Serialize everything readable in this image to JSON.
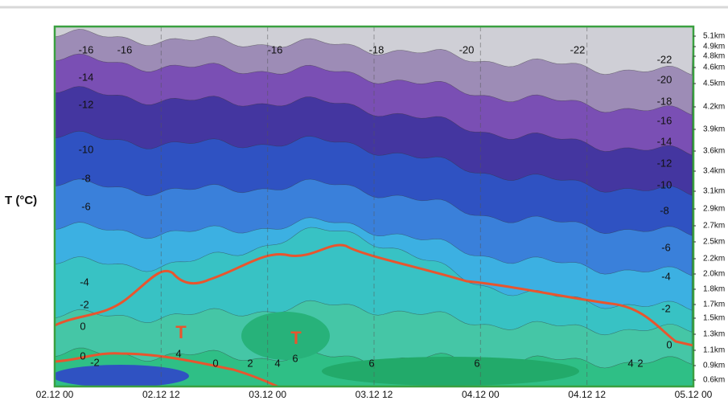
{
  "chart_data": {
    "type": "contour",
    "ylabel": "T (°C)",
    "x": [
      "02.12 00",
      "02.12 12",
      "03.12 00",
      "03.12 12",
      "04.12 00",
      "04.12 12",
      "05.12 00"
    ],
    "y2ticks": [
      {
        "value": 5.1,
        "label": "5.1km"
      },
      {
        "value": 4.9,
        "label": "4.9km"
      },
      {
        "value": 4.8,
        "label": "4.8km"
      },
      {
        "value": 4.6,
        "label": "4.6km"
      },
      {
        "value": 4.5,
        "label": "4.5km"
      },
      {
        "value": 4.2,
        "label": "4.2km"
      },
      {
        "value": 3.9,
        "label": "3.9km"
      },
      {
        "value": 3.6,
        "label": "3.6km"
      },
      {
        "value": 3.4,
        "label": "3.4km"
      },
      {
        "value": 3.1,
        "label": "3.1km"
      },
      {
        "value": 2.9,
        "label": "2.9km"
      },
      {
        "value": 2.7,
        "label": "2.7km"
      },
      {
        "value": 2.5,
        "label": "2.5km"
      },
      {
        "value": 2.2,
        "label": "2.2km"
      },
      {
        "value": 2.0,
        "label": "2.0km"
      },
      {
        "value": 1.8,
        "label": "1.8km"
      },
      {
        "value": 1.7,
        "label": "1.7km"
      },
      {
        "value": 1.5,
        "label": "1.5km"
      },
      {
        "value": 1.3,
        "label": "1.3km"
      },
      {
        "value": 1.1,
        "label": "1.1km"
      },
      {
        "value": 0.9,
        "label": "0.9km"
      },
      {
        "value": 0.6,
        "label": "0.6km"
      }
    ],
    "contour_labels": [
      -16,
      -14,
      -12,
      -10,
      -8,
      -6,
      -4,
      -2,
      0,
      0,
      -2,
      -16,
      -16,
      -18,
      -20,
      -22,
      -22,
      -20,
      -18,
      -16,
      -14,
      -12,
      -10,
      -8,
      -6,
      -4,
      -2,
      0,
      4,
      0,
      2,
      4,
      6,
      6,
      6,
      4,
      2
    ],
    "markers": [
      "T",
      "T"
    ]
  }
}
